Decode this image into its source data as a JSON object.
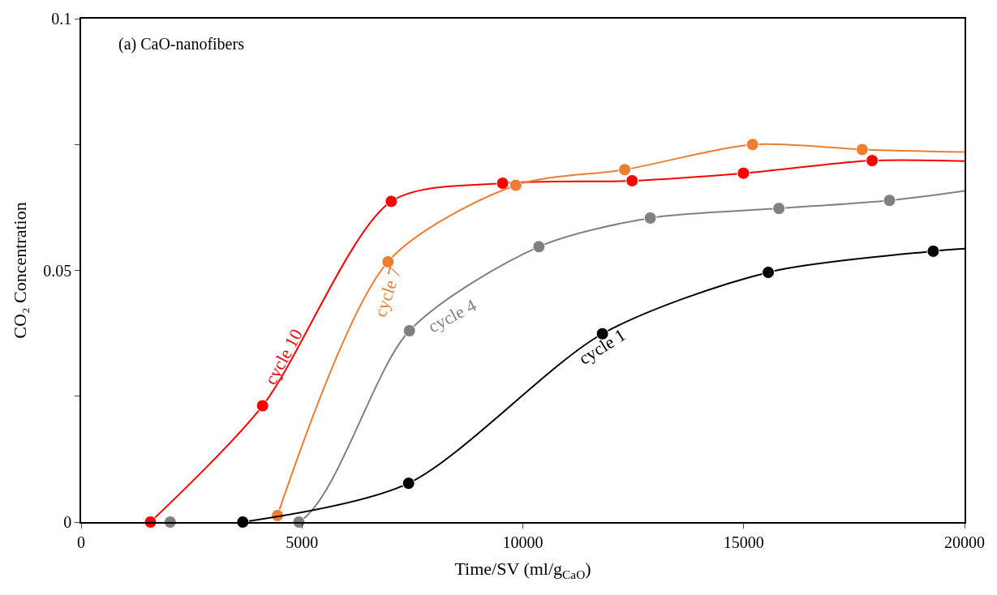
{
  "chart_data": {
    "type": "line",
    "xlabel": "Time/SV (ml/g$_{CaO}$)",
    "ylabel": "CO₂ Concentration",
    "annotations": [
      "(a) CaO-nanofibers"
    ],
    "series": [
      {
        "name": "cycle 10",
        "color": "#ff0000",
        "x": [
          1570,
          4108,
          7021,
          9542,
          12474,
          14995,
          17908,
          20000
        ],
        "values": [
          0,
          0.0231,
          0.0637,
          0.0673,
          0.0678,
          0.0693,
          0.0718,
          0.0717
        ]
      },
      {
        "name": "cycle 7",
        "color": "#ed7d31",
        "x": [
          4444,
          6947,
          9841,
          12306,
          15201,
          17684,
          20000
        ],
        "values": [
          0.0013,
          0.0517,
          0.0669,
          0.07,
          0.075,
          0.074,
          0.0735
        ]
      },
      {
        "name": "cycle 4",
        "color": "#808080",
        "x": [
          2017,
          4930,
          7432,
          10364,
          12885,
          15798,
          18301,
          20000
        ],
        "values": [
          0,
          0,
          0.038,
          0.0547,
          0.0604,
          0.0623,
          0.0639,
          0.0658
        ]
      },
      {
        "name": "cycle 1",
        "color": "#000000",
        "x": [
          3660,
          7414,
          11802,
          15556,
          19291,
          20000
        ],
        "values": [
          0,
          0.0077,
          0.0374,
          0.0496,
          0.0538,
          0.0543
        ]
      }
    ],
    "xlim": [
      0,
      20000
    ],
    "xticks": [
      0,
      5000,
      10000,
      15000,
      20000
    ],
    "ylim": [
      0,
      0.1
    ],
    "yticks": [
      0,
      {
        "value": 0.025,
        "label": null
      },
      0.05,
      {
        "value": 0.075,
        "label": null
      },
      0.1
    ],
    "marker": "circle",
    "line_style": "solid",
    "legend": false
  }
}
